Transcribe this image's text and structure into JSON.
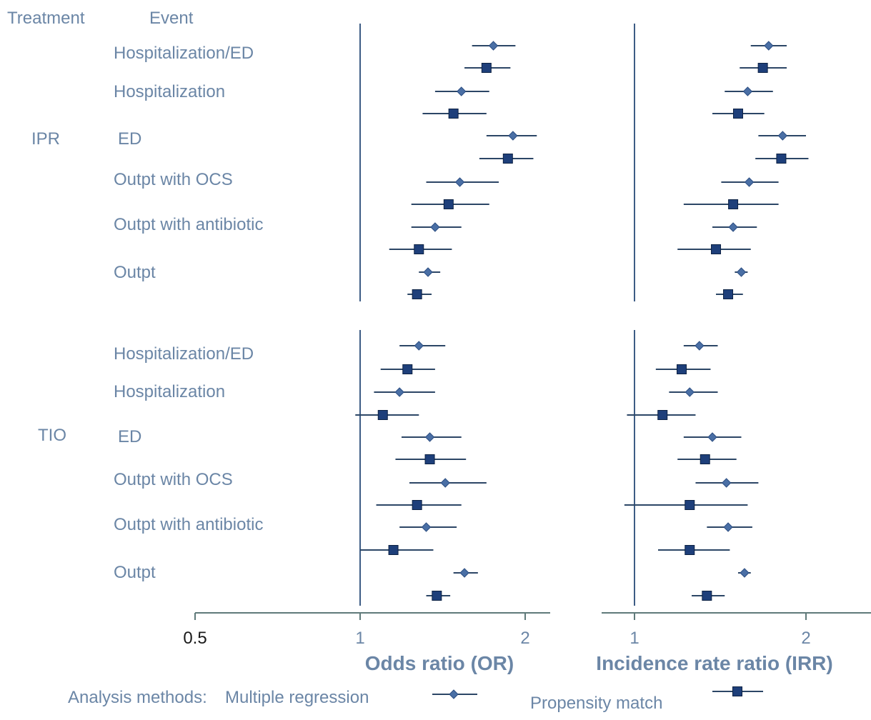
{
  "header": {
    "treatment": "Treatment",
    "event": "Event"
  },
  "groups": [
    {
      "name": "IPR",
      "events": [
        "Hospitalization/ED",
        "Hospitalization",
        "ED",
        "Outpt with OCS",
        "Outpt with antibiotic",
        "Outpt"
      ]
    },
    {
      "name": "TIO",
      "events": [
        "Hospitalization/ED",
        "Hospitalization",
        "ED",
        "Outpt with OCS",
        "Outpt with antibiotic",
        "Outpt"
      ]
    }
  ],
  "axes": {
    "or": {
      "title": "Odds ratio (OR)",
      "ticks": [
        "0.5",
        "1",
        "2"
      ]
    },
    "irr": {
      "title": "Incidence rate ratio (IRR)",
      "ticks": [
        "1",
        "2"
      ]
    }
  },
  "legend": {
    "prefix": "Analysis methods:",
    "multiple": "Multiple regression",
    "propensity": "Propensity match"
  },
  "colors": {
    "diamond": "#4a6fa5",
    "square": "#1e3f7a",
    "ci_line": "#2c4666",
    "ref_line": "#3d5c85",
    "label_text": "#6b86a6"
  },
  "chart_data": {
    "type": "forest",
    "x_scale": "log",
    "panels": [
      {
        "name": "Odds ratio (OR)",
        "xlim": [
          0.5,
          2.2
        ],
        "reference": 1
      },
      {
        "name": "Incidence rate ratio (IRR)",
        "xlim": [
          0.9,
          2.4
        ],
        "reference": 1
      }
    ],
    "series": [
      {
        "name": "Multiple regression",
        "marker": "diamond"
      },
      {
        "name": "Propensity match",
        "marker": "square"
      }
    ],
    "rows": [
      {
        "group": "IPR",
        "event": "Hospitalization/ED",
        "method": "Multiple regression",
        "or": [
          1.75,
          1.6,
          1.92
        ],
        "irr": [
          1.72,
          1.6,
          1.85
        ]
      },
      {
        "group": "IPR",
        "event": "Hospitalization/ED",
        "method": "Propensity match",
        "or": [
          1.7,
          1.55,
          1.88
        ],
        "irr": [
          1.68,
          1.53,
          1.85
        ]
      },
      {
        "group": "IPR",
        "event": "Hospitalization",
        "method": "Multiple regression",
        "or": [
          1.53,
          1.37,
          1.72
        ],
        "irr": [
          1.58,
          1.44,
          1.75
        ]
      },
      {
        "group": "IPR",
        "event": "Hospitalization",
        "method": "Propensity match",
        "or": [
          1.48,
          1.3,
          1.7
        ],
        "irr": [
          1.52,
          1.37,
          1.69
        ]
      },
      {
        "group": "IPR",
        "event": "ED",
        "method": "Multiple regression",
        "or": [
          1.9,
          1.7,
          2.1
        ],
        "irr": [
          1.82,
          1.65,
          2.0
        ]
      },
      {
        "group": "IPR",
        "event": "ED",
        "method": "Propensity match",
        "or": [
          1.86,
          1.65,
          2.07
        ],
        "irr": [
          1.81,
          1.63,
          2.02
        ]
      },
      {
        "group": "IPR",
        "event": "Outpt with OCS",
        "method": "Multiple regression",
        "or": [
          1.52,
          1.32,
          1.79
        ],
        "irr": [
          1.59,
          1.42,
          1.79
        ]
      },
      {
        "group": "IPR",
        "event": "Outpt with OCS",
        "method": "Propensity match",
        "or": [
          1.45,
          1.24,
          1.72
        ],
        "irr": [
          1.49,
          1.22,
          1.79
        ]
      },
      {
        "group": "IPR",
        "event": "Outpt with antibiotic",
        "method": "Multiple regression",
        "or": [
          1.37,
          1.24,
          1.53
        ],
        "irr": [
          1.49,
          1.37,
          1.64
        ]
      },
      {
        "group": "IPR",
        "event": "Outpt with antibiotic",
        "method": "Propensity match",
        "or": [
          1.28,
          1.13,
          1.47
        ],
        "irr": [
          1.39,
          1.19,
          1.6
        ]
      },
      {
        "group": "IPR",
        "event": "Outpt",
        "method": "Multiple regression",
        "or": [
          1.33,
          1.28,
          1.4
        ],
        "irr": [
          1.54,
          1.5,
          1.58
        ]
      },
      {
        "group": "IPR",
        "event": "Outpt",
        "method": "Propensity match",
        "or": [
          1.27,
          1.22,
          1.35
        ],
        "irr": [
          1.46,
          1.39,
          1.55
        ]
      },
      {
        "group": "TIO",
        "event": "Hospitalization/ED",
        "method": "Multiple regression",
        "or": [
          1.28,
          1.18,
          1.43
        ],
        "irr": [
          1.3,
          1.22,
          1.4
        ]
      },
      {
        "group": "TIO",
        "event": "Hospitalization/ED",
        "method": "Propensity match",
        "or": [
          1.22,
          1.09,
          1.37
        ],
        "irr": [
          1.21,
          1.09,
          1.36
        ]
      },
      {
        "group": "TIO",
        "event": "Hospitalization",
        "method": "Multiple regression",
        "or": [
          1.18,
          1.06,
          1.37
        ],
        "irr": [
          1.25,
          1.15,
          1.4
        ]
      },
      {
        "group": "TIO",
        "event": "Hospitalization",
        "method": "Propensity match",
        "or": [
          1.1,
          0.98,
          1.28
        ],
        "irr": [
          1.12,
          0.97,
          1.28
        ]
      },
      {
        "group": "TIO",
        "event": "ED",
        "method": "Multiple regression",
        "or": [
          1.34,
          1.19,
          1.53
        ],
        "irr": [
          1.37,
          1.22,
          1.54
        ]
      },
      {
        "group": "TIO",
        "event": "ED",
        "method": "Propensity match",
        "or": [
          1.34,
          1.16,
          1.56
        ],
        "irr": [
          1.33,
          1.19,
          1.51
        ]
      },
      {
        "group": "TIO",
        "event": "Outpt with OCS",
        "method": "Multiple regression",
        "or": [
          1.43,
          1.23,
          1.7
        ],
        "irr": [
          1.45,
          1.28,
          1.65
        ]
      },
      {
        "group": "TIO",
        "event": "Outpt with OCS",
        "method": "Propensity match",
        "or": [
          1.27,
          1.07,
          1.53
        ],
        "irr": [
          1.25,
          0.96,
          1.58
        ]
      },
      {
        "group": "TIO",
        "event": "Outpt with antibiotic",
        "method": "Multiple regression",
        "or": [
          1.32,
          1.18,
          1.5
        ],
        "irr": [
          1.46,
          1.34,
          1.61
        ]
      },
      {
        "group": "TIO",
        "event": "Outpt with antibiotic",
        "method": "Propensity match",
        "or": [
          1.15,
          1.0,
          1.36
        ],
        "irr": [
          1.25,
          1.1,
          1.47
        ]
      },
      {
        "group": "TIO",
        "event": "Outpt",
        "method": "Multiple regression",
        "or": [
          1.55,
          1.48,
          1.64
        ],
        "irr": [
          1.56,
          1.52,
          1.6
        ]
      },
      {
        "group": "TIO",
        "event": "Outpt",
        "method": "Propensity match",
        "or": [
          1.38,
          1.32,
          1.46
        ],
        "irr": [
          1.34,
          1.26,
          1.44
        ]
      }
    ]
  }
}
